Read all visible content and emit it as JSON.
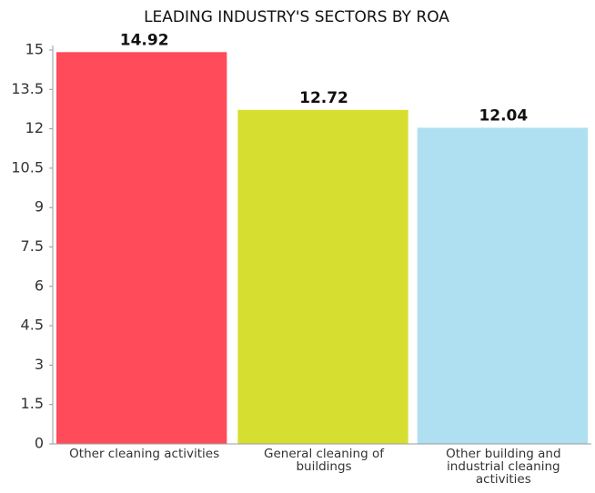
{
  "chart_data": {
    "type": "bar",
    "title": "LEADING INDUSTRY'S SECTORS BY ROA",
    "categories": [
      "Other cleaning activities",
      "General cleaning of buildings",
      "Other building and industrial cleaning activities"
    ],
    "values": [
      14.92,
      12.72,
      12.04
    ],
    "colors": [
      "#ff4b5a",
      "#d6df30",
      "#aee0f2"
    ],
    "ylim": [
      0,
      15
    ],
    "yticks": [
      0,
      1.5,
      3,
      4.5,
      6,
      7.5,
      9,
      10.5,
      12,
      13.5,
      15
    ],
    "grid": false
  }
}
